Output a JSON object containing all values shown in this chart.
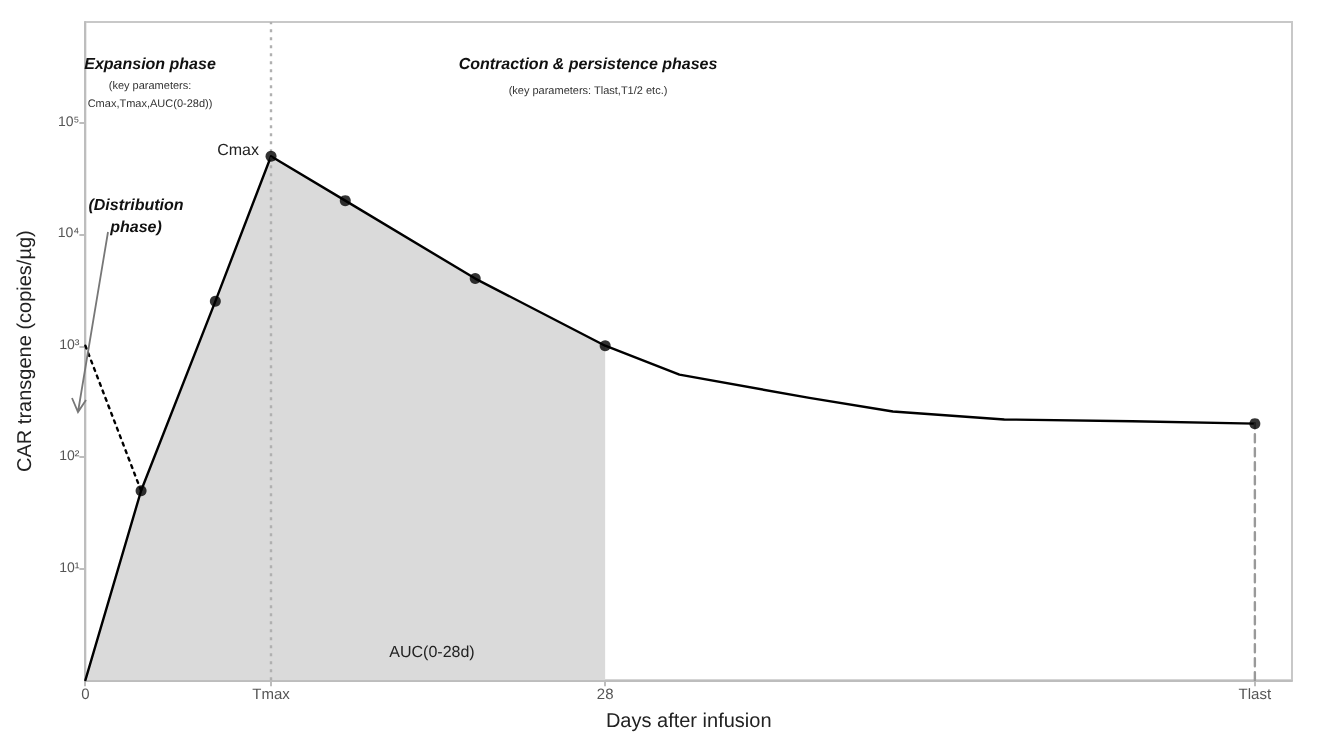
{
  "chart_data": {
    "type": "line",
    "xlabel": "Days after infusion",
    "ylabel": "CAR transgene (copies/µg)",
    "log": "y",
    "grid": false,
    "xlim": [
      0,
      65
    ],
    "xticks": [
      0,
      {
        "value": 10,
        "label": "Tmax"
      },
      28,
      {
        "value": 63,
        "label": "Tlast"
      }
    ],
    "ylim": [
      1,
      800000
    ],
    "yticks": [
      {
        "value": 10,
        "label": "10¹"
      },
      {
        "value": 100,
        "label": "10²"
      },
      {
        "value": 1000,
        "label": "10³"
      },
      {
        "value": 10000,
        "label": "10⁴"
      },
      {
        "value": 100000,
        "label": "10⁵"
      }
    ],
    "ref_lines": [
      {
        "axis": "x",
        "value": 10,
        "color": "#b0b0b0",
        "line_style": "dotted"
      }
    ],
    "series": [
      {
        "type": "area",
        "color": "#dadada",
        "x": [
          0,
          3,
          7,
          10,
          14,
          21,
          28
        ],
        "values": [
          1,
          50,
          2500,
          50000,
          20000,
          4000,
          1000
        ]
      },
      {
        "color": "#000000",
        "marker": "none",
        "line_style": "solid",
        "x": [
          0,
          3,
          7,
          10,
          14,
          21,
          28,
          32,
          39,
          43.5,
          49.5,
          56.4,
          63
        ],
        "values": [
          1,
          50,
          2500,
          50000,
          20000,
          4000,
          1000,
          550,
          340,
          257,
          218,
          210,
          200
        ]
      },
      {
        "color": "#000000",
        "marker": "none",
        "line_style": "dotted",
        "x": [
          0,
          3
        ],
        "values": [
          1000,
          50
        ]
      },
      {
        "color": "#999999",
        "marker": "none",
        "line_style": "dashed",
        "x": [
          63,
          63
        ],
        "values": [
          1,
          200
        ]
      },
      {
        "type": "scatter",
        "color": "#000000",
        "marker": "circle",
        "x": [
          3,
          7,
          10,
          14,
          21,
          28,
          63
        ],
        "values": [
          50,
          2500,
          50000,
          20000,
          4000,
          1000,
          200
        ]
      }
    ],
    "annotations": [
      "Expansion phase",
      "(key parameters:\nCmax,Tmax,AUC(0-28d))",
      "Contraction & persistence phases",
      "(key parameters: Tlast,T1/2 etc.)",
      "(Distribution\nphase)",
      "AUC(0-28d)",
      {
        "text": "Cmax",
        "x": 10,
        "y": 50000
      }
    ]
  }
}
